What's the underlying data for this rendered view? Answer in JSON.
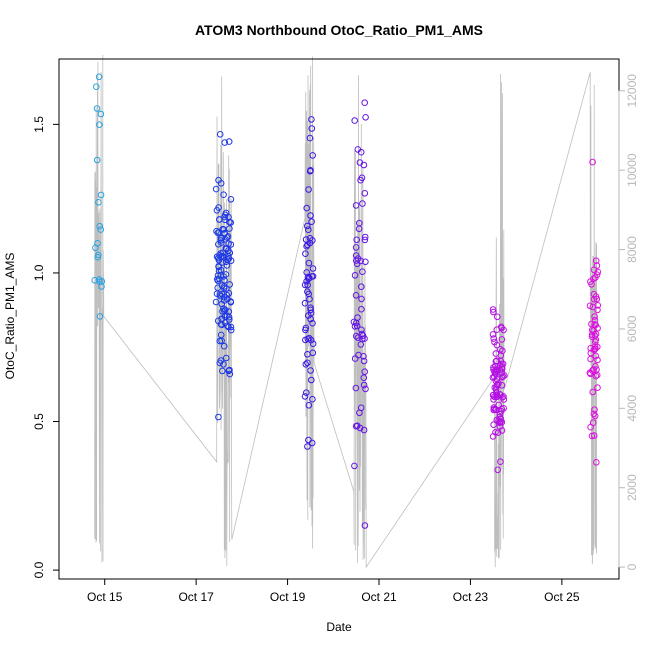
{
  "chart_data": {
    "type": "scatter",
    "title": "ATOM3 Northbound OtoC_Ratio_PM1_AMS",
    "xlabel": "Date",
    "ylabel": "OtoC_Ratio_PM1_AMS",
    "x_ticks": [
      "Oct 15",
      "Oct 17",
      "Oct 19",
      "Oct 21",
      "Oct 23",
      "Oct 25"
    ],
    "xlim": [
      "2016-10-14T00:00",
      "2016-10-26T06:00"
    ],
    "y_ticks": [
      0.0,
      0.5,
      1.0,
      1.5
    ],
    "ylim": [
      -0.03,
      1.72
    ],
    "y2_ticks": [
      0,
      2000,
      4000,
      6000,
      8000,
      10000,
      12000
    ],
    "y2lim": [
      -300,
      12800
    ],
    "secondary_series_color": "#bebebe",
    "point_color_gradient": [
      "#29a8e0",
      "#1a1ae6",
      "#9910e6",
      "#e010e0"
    ],
    "legend": "none",
    "grid": false
  }
}
